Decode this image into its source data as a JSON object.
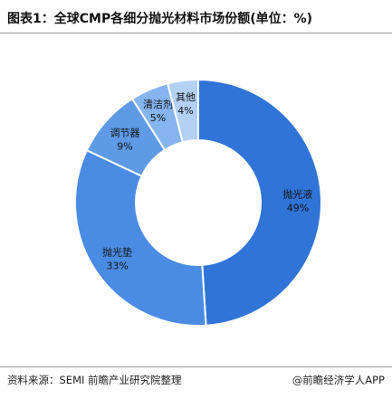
{
  "title": "图表1：全球CMP各细分抛光材料市场份额(单位：%)",
  "footer": {
    "source": "资料来源：SEMI 前瞻产业研究院整理",
    "brand": "@前瞻经济学人APP"
  },
  "chart_data": {
    "type": "pie",
    "donut": true,
    "title": "图表1：全球CMP各细分抛光材料市场份额(单位：%)",
    "unit": "%",
    "start_angle_deg": 0,
    "direction": "clockwise",
    "slices": [
      {
        "name": "抛光液",
        "value": 49,
        "label": "49%",
        "color": "#2f74d6"
      },
      {
        "name": "抛光垫",
        "value": 33,
        "label": "33%",
        "color": "#4a8be3"
      },
      {
        "name": "调节器",
        "value": 9,
        "label": "9%",
        "color": "#5e9ae6"
      },
      {
        "name": "清洁剂",
        "value": 5,
        "label": "5%",
        "color": "#86b4ee"
      },
      {
        "name": "其他",
        "value": 4,
        "label": "4%",
        "color": "#b3d0f5"
      }
    ]
  }
}
